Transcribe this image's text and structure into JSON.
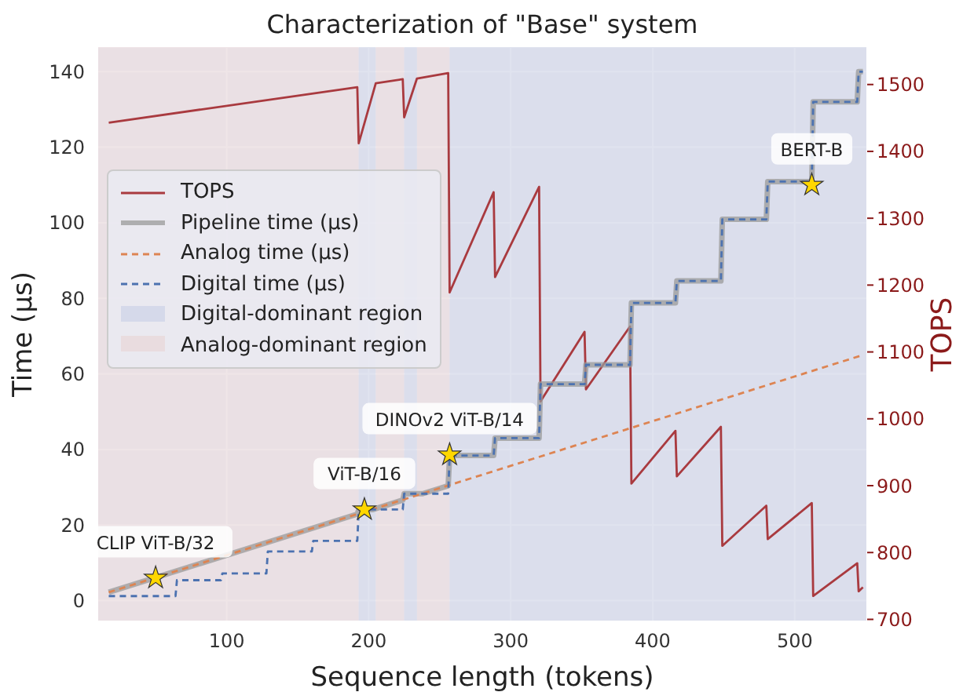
{
  "chart_data": {
    "type": "line",
    "title": "Characterization of \"Base\" system",
    "xlabel": "Sequence length (tokens)",
    "ylabel": "Time (µs)",
    "y2label": "TOPS",
    "xlim": [
      9,
      551
    ],
    "xticks": [
      100,
      200,
      300,
      400,
      500
    ],
    "ylim": [
      -5.5,
      146.5
    ],
    "yticks": [
      0,
      20,
      40,
      60,
      80,
      100,
      120,
      140
    ],
    "y2lim": [
      697,
      1556
    ],
    "y2ticks": [
      700,
      800,
      900,
      1000,
      1100,
      1200,
      1300,
      1400,
      1500
    ],
    "grid": true,
    "legend": "left",
    "marker": "none",
    "series": [
      {
        "name": "TOPS",
        "color": "#a93a3f",
        "axis": "y2",
        "line_style": "solid",
        "x": [
          17,
          192,
          193,
          205,
          224,
          225,
          234,
          256,
          257,
          288,
          289,
          320,
          321,
          352,
          353,
          384,
          385,
          416,
          417,
          448,
          449,
          480,
          481,
          512,
          513,
          544,
          545,
          548
        ],
        "values": [
          1443,
          1496,
          1412,
          1502,
          1508,
          1451,
          1509,
          1517,
          1189,
          1339,
          1212,
          1347,
          1026,
          1130,
          1044,
          1138,
          903,
          982,
          914,
          988,
          810,
          870,
          820,
          874,
          735,
          784,
          742,
          748
        ]
      },
      {
        "name": "Pipeline time (µs)",
        "color": "#9a9a9a",
        "line_style": "solid",
        "x": [
          17,
          192,
          193,
          203,
          224,
          225,
          238,
          256,
          257,
          288,
          289,
          320,
          321,
          352,
          353,
          384,
          385,
          416,
          417,
          448,
          449,
          480,
          481,
          512,
          513,
          544,
          545,
          548
        ],
        "values": [
          2.2,
          22.9,
          24.1,
          24.1,
          26.6,
          28.3,
          28.3,
          30.4,
          38.4,
          38.4,
          43,
          43,
          57.3,
          57.3,
          62.4,
          62.4,
          78.8,
          78.8,
          84.6,
          84.6,
          100.9,
          100.9,
          110.9,
          110.9,
          132,
          132,
          140,
          140
        ]
      },
      {
        "name": "Analog time (µs)",
        "color": "#dd8452",
        "line_style": "dashed",
        "x": [
          17,
          548
        ],
        "values": [
          2.2,
          65
        ]
      },
      {
        "name": "Digital time (µs)",
        "color": "#4c72b0",
        "line_style": "dashed",
        "x": [
          17,
          64,
          65,
          96,
          97,
          128,
          129,
          160,
          161,
          192,
          193,
          224,
          225,
          256,
          257,
          288,
          289,
          320,
          321,
          352,
          353,
          384,
          385,
          416,
          417,
          448,
          449,
          480,
          481,
          512,
          513,
          544,
          545,
          548
        ],
        "values": [
          1.2,
          1.2,
          5.4,
          5.4,
          7.2,
          7.2,
          13,
          13,
          15.8,
          15.8,
          24.1,
          24.1,
          28.3,
          28.3,
          38.4,
          38.4,
          43,
          43,
          57.3,
          57.3,
          62.4,
          62.4,
          78.8,
          78.8,
          84.6,
          84.6,
          100.9,
          100.9,
          110.9,
          110.9,
          132,
          132,
          140,
          140
        ]
      },
      {
        "type": "scatter",
        "color": "#ffd700",
        "marker": "star",
        "x": [
          50,
          197,
          257,
          512
        ],
        "values": [
          6,
          24.1,
          38.6,
          110
        ]
      }
    ],
    "bands": [
      {
        "axis": "x",
        "from": 9,
        "to": 193,
        "label": "Analog-dominant region",
        "color": "#e9dcdf"
      },
      {
        "axis": "x",
        "from": 193,
        "to": 205,
        "label": "Digital-dominant region",
        "color": "#d5d9ea"
      },
      {
        "axis": "x",
        "from": 205,
        "to": 225,
        "color": "#e9dcdf"
      },
      {
        "axis": "x",
        "from": 225,
        "to": 234,
        "color": "#d5d9ea"
      },
      {
        "axis": "x",
        "from": 234,
        "to": 257,
        "color": "#e9dcdf"
      },
      {
        "axis": "x",
        "from": 257,
        "to": 551,
        "color": "#d5d9ea"
      }
    ],
    "annotations": [
      {
        "text": "CLIP ViT-B/32",
        "x": 50,
        "y": 6
      },
      {
        "text": "ViT-B/16",
        "x": 197,
        "y": 24.1
      },
      {
        "text": "DINOv2 ViT-B/14",
        "x": 257,
        "y": 38.6
      },
      {
        "text": "BERT-B",
        "x": 512,
        "y": 110
      }
    ]
  }
}
